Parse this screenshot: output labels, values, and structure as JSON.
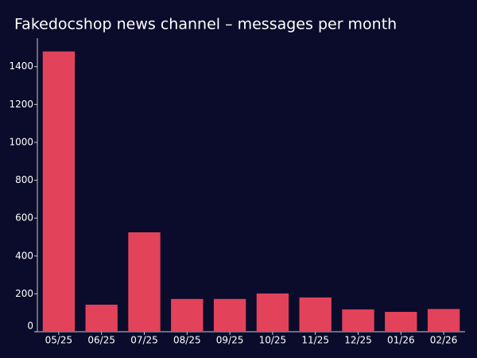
{
  "chart_data": {
    "type": "bar",
    "title": "Fakedocshop news channel – messages per month",
    "categories": [
      "05/25",
      "06/25",
      "07/25",
      "08/25",
      "09/25",
      "10/25",
      "11/25",
      "12/25",
      "01/26",
      "02/26"
    ],
    "values": [
      1480,
      143,
      525,
      173,
      173,
      202,
      181,
      118,
      105,
      120
    ],
    "color": "#e2435a",
    "ylim": [
      0,
      1550
    ],
    "yticks": [
      0,
      200,
      400,
      600,
      800,
      1000,
      1200,
      1400
    ],
    "grid": false
  }
}
